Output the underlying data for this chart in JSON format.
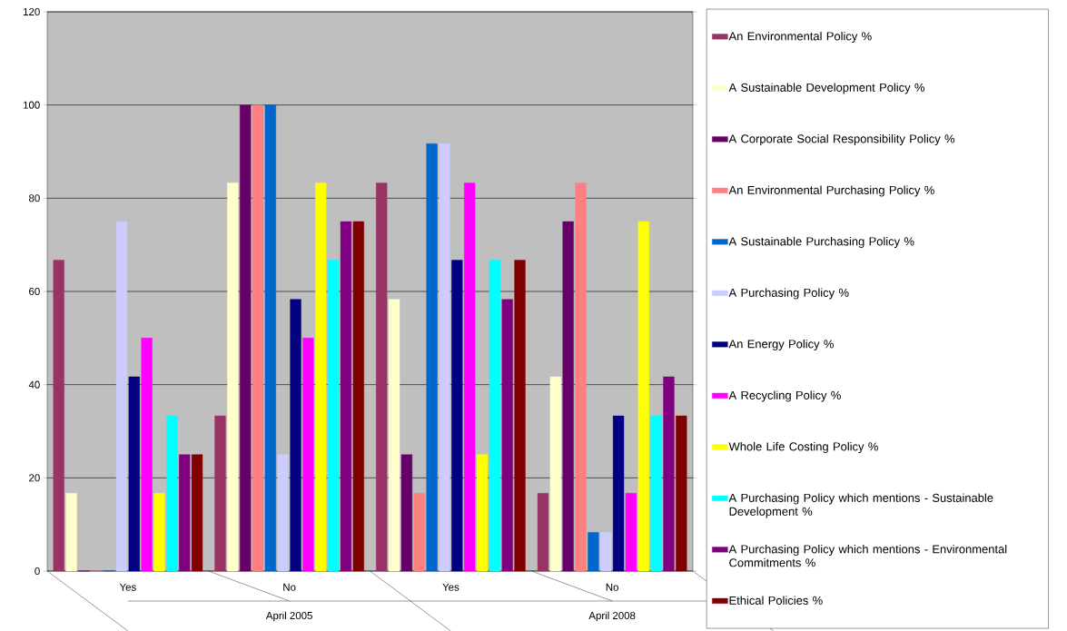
{
  "chart_data": {
    "type": "bar",
    "categories": [
      "Yes",
      "No",
      "Yes",
      "No"
    ],
    "annotations": [
      "April 2005",
      "April 2008"
    ],
    "ylim": [
      0,
      120
    ],
    "yticks": [
      0,
      20,
      40,
      60,
      80,
      100,
      120
    ],
    "grid": "y",
    "legend": "right",
    "series": [
      {
        "name": "An Environmental Policy %",
        "color": "#993366",
        "values": [
          66.7,
          33.3,
          83.3,
          16.7
        ]
      },
      {
        "name": "A Sustainable Development Policy %",
        "color": "#ffffcc",
        "values": [
          16.7,
          83.3,
          58.3,
          41.7
        ]
      },
      {
        "name": "A Corporate Social Responsibility Policy %",
        "color": "#660066",
        "values": [
          0,
          100,
          25,
          75
        ]
      },
      {
        "name": "An Environmental Purchasing Policy %",
        "color": "#ff8080",
        "values": [
          0,
          100,
          16.7,
          83.3
        ]
      },
      {
        "name": "A Sustainable Purchasing Policy %",
        "color": "#0066cc",
        "values": [
          0,
          100,
          91.7,
          8.3
        ]
      },
      {
        "name": "A Purchasing Policy %",
        "color": "#ccccff",
        "values": [
          75,
          25,
          91.7,
          8.3
        ]
      },
      {
        "name": "An Energy Policy %",
        "color": "#000080",
        "values": [
          41.7,
          58.3,
          66.7,
          33.3
        ]
      },
      {
        "name": "A Recycling Policy %",
        "color": "#ff00ff",
        "values": [
          50,
          50,
          83.3,
          16.7
        ]
      },
      {
        "name": "Whole Life Costing Policy %",
        "color": "#ffff00",
        "values": [
          16.7,
          83.3,
          25,
          75
        ]
      },
      {
        "name": "A Purchasing Policy which mentions - Sustainable Development %",
        "color": "#00ffff",
        "values": [
          33.3,
          66.7,
          66.7,
          33.3
        ]
      },
      {
        "name": "A Purchasing Policy which mentions - Environmental Commitments %",
        "color": "#800080",
        "values": [
          25,
          75,
          58.3,
          41.7
        ]
      },
      {
        "name": "Ethical Policies %",
        "color": "#800000",
        "values": [
          25,
          75,
          66.7,
          33.3
        ]
      }
    ]
  }
}
